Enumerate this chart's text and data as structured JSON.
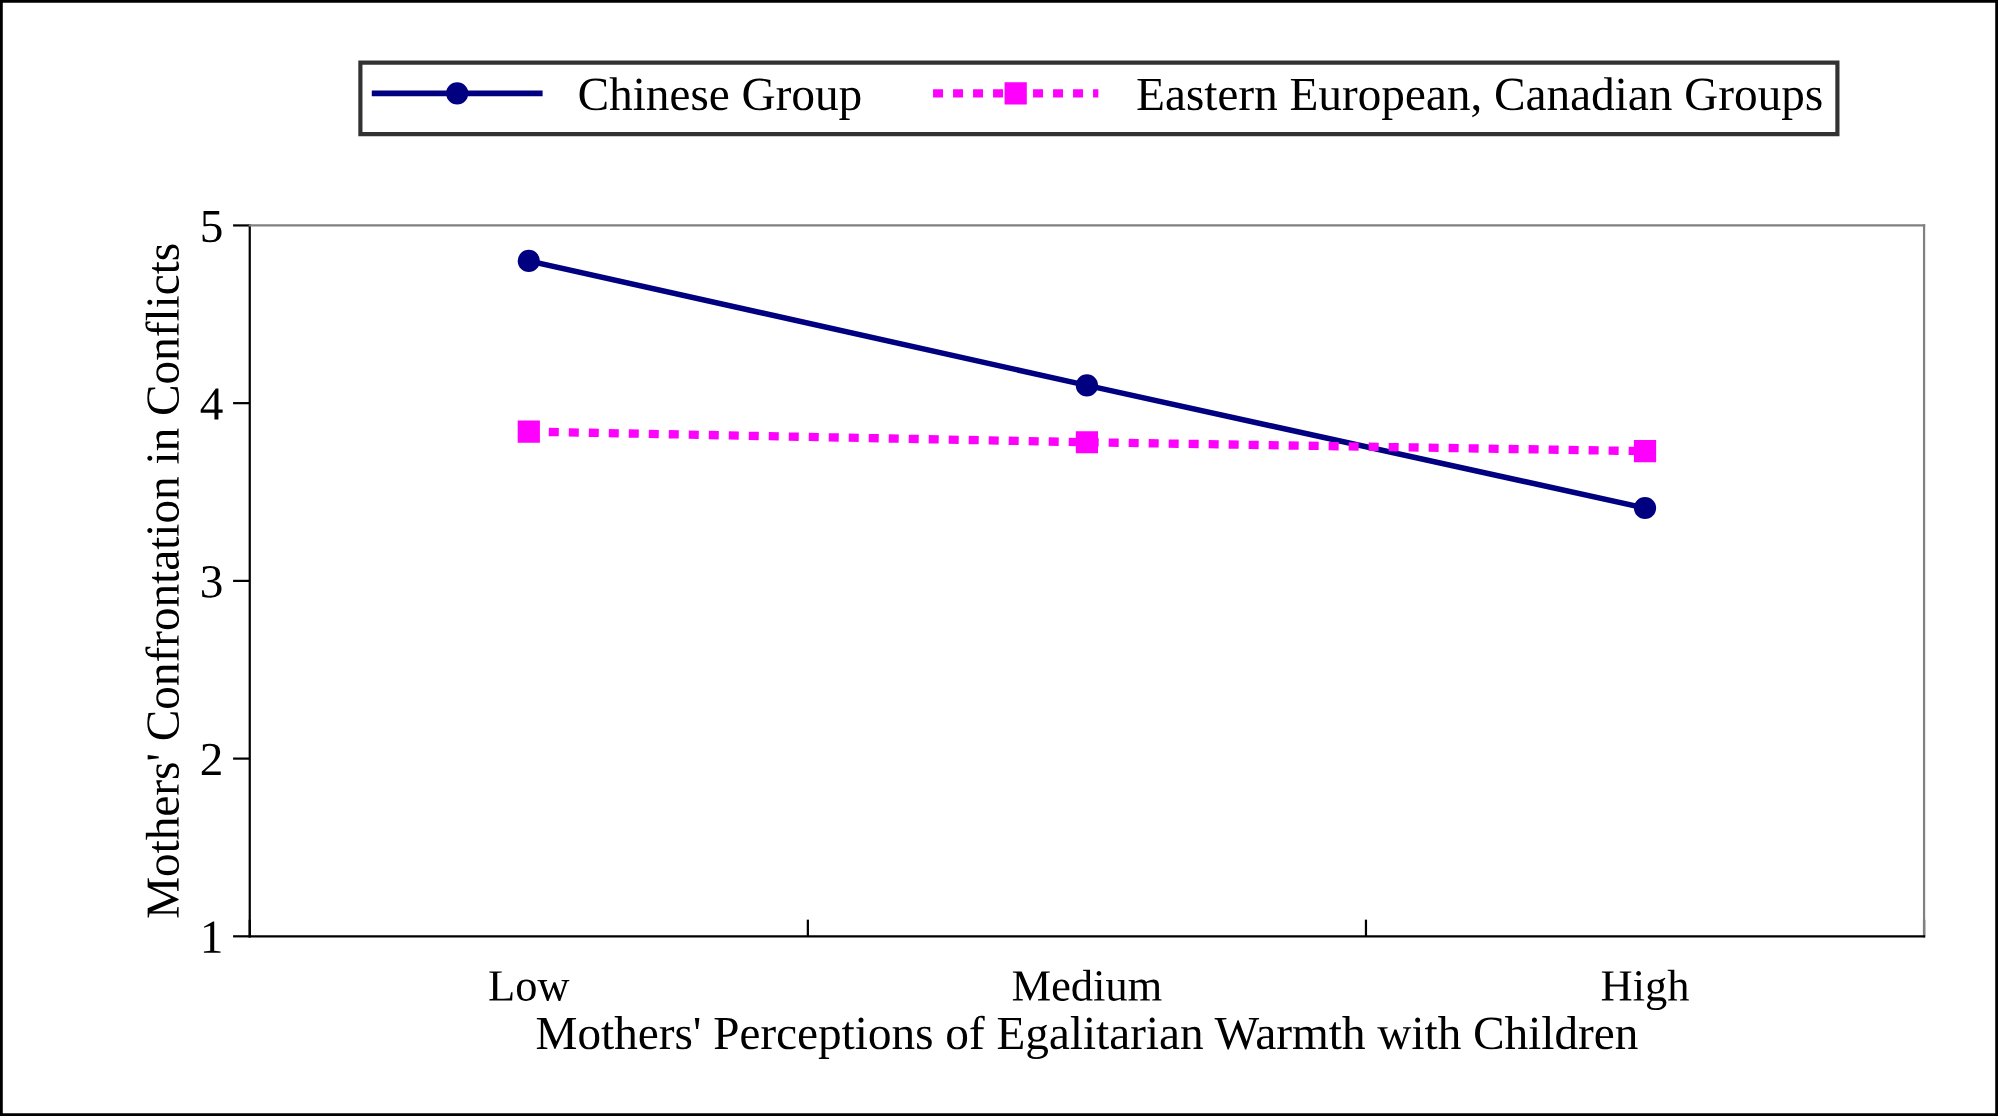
{
  "chart_data": {
    "type": "line",
    "xlabel": "Mothers' Perceptions of Egalitarian Warmth with Children",
    "ylabel": "Mothers' Confrontation in Conflicts",
    "categories": [
      "Low",
      "Medium",
      "High"
    ],
    "series": [
      {
        "name": "Chinese Group",
        "color": "#000080",
        "values": [
          4.8,
          4.1,
          3.41
        ],
        "marker": "circle",
        "line_style": "solid"
      },
      {
        "name": "Eastern European, Canadian Groups",
        "color": "#ff00ff",
        "values": [
          3.84,
          3.78,
          3.73
        ],
        "marker": "square",
        "line_style": "dotted"
      }
    ],
    "ylim": [
      1,
      5
    ],
    "yticks": [
      1,
      2,
      3,
      4,
      5
    ],
    "grid": false,
    "legend": "top"
  }
}
